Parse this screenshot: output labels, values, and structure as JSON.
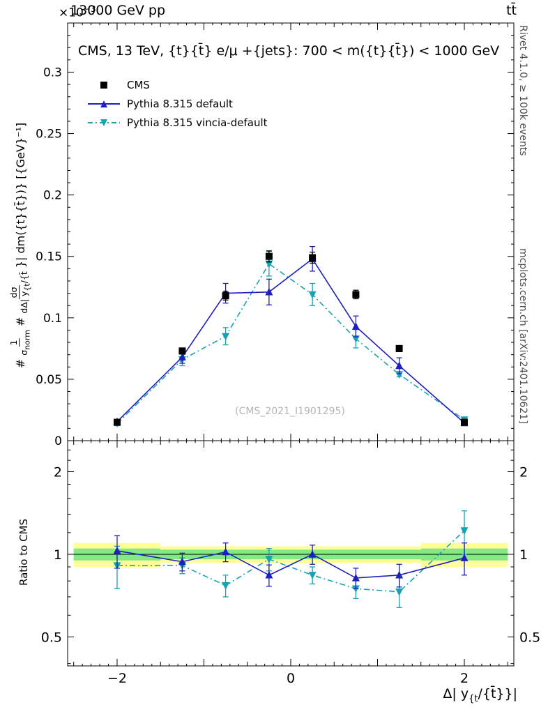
{
  "header": {
    "scale_base": "×10",
    "scale_exp": "−3",
    "beam": "13000 GeV pp",
    "process": "tt̄"
  },
  "right_margin": {
    "top": "Rivet 4.1.0, ≥ 100k events",
    "bottom": "mcplots.cern.ch [arXiv:2401.10621]"
  },
  "main_panel": {
    "title": "CMS, 13 TeV, {t}{t̄} e/μ +{jets}: 700 < m({t}{t̄}) < 1000 GeV",
    "watermark": "(CMS_2021_I1901295)",
    "ylabel": {
      "hash1": "#",
      "frac1_num": "1",
      "frac1_den_base": "σ",
      "frac1_den_sub": "norm",
      "hash2": "#",
      "frac2_num": "dσ",
      "frac2_den_base": "dΔ| y",
      "frac2_den_sub": "{t",
      "frac2_den_post": "/{t̄",
      "suffix": "}| dm({t}{t̄})} [{GeV}⁻¹]"
    }
  },
  "ratio_panel": {
    "ylabel": "Ratio to CMS"
  },
  "xaxis": {
    "label_pre": "Δ| y",
    "label_sub": "{t",
    "label_post": "/{t̄}}|"
  },
  "legend": {
    "items": [
      {
        "label": "CMS",
        "marker": "square",
        "color": "#000000",
        "line": "none"
      },
      {
        "label": "Pythia 8.315 default",
        "marker": "triangle-up",
        "color": "#1f1fbf",
        "line": "solid"
      },
      {
        "label": "Pythia 8.315 vincia-default",
        "marker": "triangle-down",
        "color": "#17a2b2",
        "line": "dashdot"
      }
    ]
  },
  "chart_data": {
    "type": "line",
    "title": "CMS, 13 TeV, {t}{t̄} e/μ +{jets}: 700 < m({t}{t̄}) < 1000 GeV",
    "xlabel": "Δ| y_{t}/{t̄}}|",
    "ylabel": "1/σ_norm dσ/dΔ|y_{t}/{t̄}| dm({t}{t̄}) [{GeV}⁻¹]",
    "xlim": [
      -2.57,
      2.57
    ],
    "ylim": [
      0,
      0.34
    ],
    "grid": false,
    "legend_position": "upper-left-inside",
    "x": [
      -2.0,
      -1.25,
      -0.75,
      -0.25,
      0.25,
      0.75,
      1.25,
      2.0
    ],
    "bin_edges": [
      -2.5,
      -1.5,
      -1.0,
      -0.5,
      0.0,
      0.5,
      1.0,
      1.5,
      2.5
    ],
    "yticks": [
      0,
      0.05,
      0.1,
      0.15,
      0.2,
      0.25,
      0.3
    ],
    "xticks": [
      -2,
      0,
      2
    ],
    "series": [
      {
        "name": "CMS",
        "marker": "square",
        "color": "#000000",
        "draw_line": false,
        "values": [
          0.015,
          0.073,
          0.118,
          0.15,
          0.149,
          0.119,
          0.075,
          0.015
        ],
        "errors": [
          0.0012,
          0.0025,
          0.0035,
          0.0045,
          0.0045,
          0.0035,
          0.0025,
          0.0012
        ]
      },
      {
        "name": "Pythia 8.315 default",
        "marker": "triangle-up",
        "color": "#1f1fbf",
        "linestyle": "solid",
        "values": [
          0.0155,
          0.068,
          0.12,
          0.121,
          0.148,
          0.093,
          0.061,
          0.0145
        ],
        "errors": [
          0.0018,
          0.005,
          0.008,
          0.0105,
          0.01,
          0.0085,
          0.0065,
          0.0018
        ]
      },
      {
        "name": "Pythia 8.315 vincia-default",
        "marker": "triangle-down",
        "color": "#17a2b2",
        "linestyle": "dashdot",
        "values": [
          0.014,
          0.066,
          0.085,
          0.144,
          0.119,
          0.083,
          0.054,
          0.017
        ],
        "errors": [
          0.0018,
          0.005,
          0.007,
          0.01,
          0.009,
          0.0075,
          0.002,
          0.002
        ]
      }
    ],
    "ratio": {
      "yscale": "log",
      "ylim": [
        0.39,
        2.6
      ],
      "yticks": [
        0.5,
        1,
        2
      ],
      "bands": {
        "yellow_frac": [
          0.1,
          0.07,
          0.07,
          0.07,
          0.07,
          0.07,
          0.07,
          0.1
        ],
        "green_frac": [
          0.05,
          0.04,
          0.04,
          0.04,
          0.04,
          0.04,
          0.04,
          0.05
        ],
        "yellow_color": "#ffff99",
        "green_color": "#84e884"
      },
      "series": [
        {
          "name": "Pythia 8.315 default",
          "marker": "triangle-up",
          "color": "#1f1fbf",
          "linestyle": "solid",
          "values": [
            1.03,
            0.94,
            1.02,
            0.84,
            1.0,
            0.82,
            0.84,
            0.97
          ],
          "errors": [
            0.14,
            0.07,
            0.08,
            0.075,
            0.08,
            0.07,
            0.08,
            0.13
          ]
        },
        {
          "name": "Pythia 8.315 vincia-default",
          "marker": "triangle-down",
          "color": "#17a2b2",
          "linestyle": "dashdot",
          "values": [
            0.91,
            0.91,
            0.77,
            0.96,
            0.84,
            0.75,
            0.73,
            1.22
          ],
          "errors": [
            0.16,
            0.06,
            0.07,
            0.09,
            0.06,
            0.06,
            0.09,
            0.22
          ]
        }
      ]
    }
  }
}
